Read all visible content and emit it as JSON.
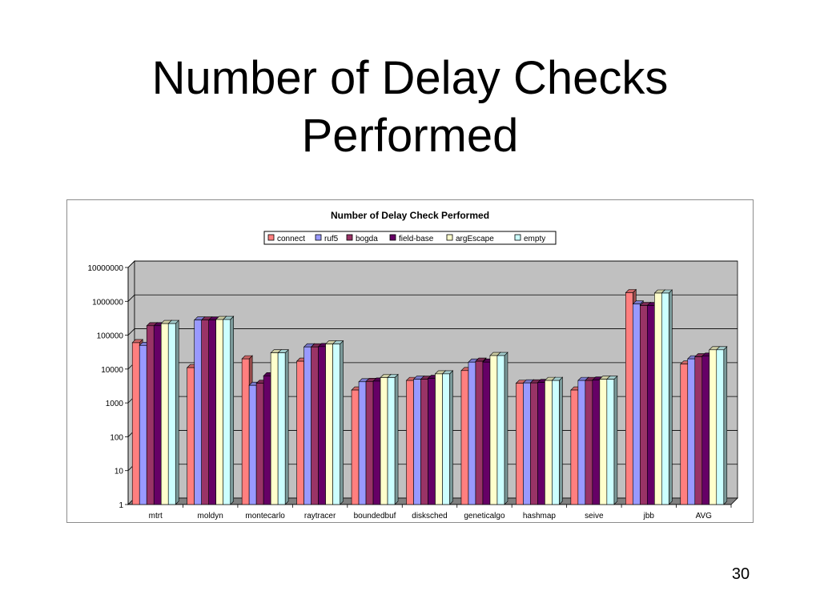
{
  "slide": {
    "title_line1": "Number of Delay Checks",
    "title_line2": "Performed",
    "page_number": "30"
  },
  "chart_data": {
    "type": "bar",
    "title": "Number of Delay Check Performed",
    "yscale": "log",
    "ylim": [
      1,
      10000000
    ],
    "yticks": [
      "1",
      "10",
      "100",
      "1000",
      "10000",
      "100000",
      "1000000",
      "10000000"
    ],
    "grid": true,
    "legend_position": "top",
    "categories": [
      "mtrt",
      "moldyn",
      "montecarlo",
      "raytracer",
      "boundedbuf",
      "disksched",
      "geneticalgo",
      "hashmap",
      "seive",
      "jbb",
      "AVG"
    ],
    "series": [
      {
        "name": "connect",
        "color": "#ff7f7f",
        "values": [
          60000,
          11000,
          20000,
          17000,
          2400,
          4600,
          9000,
          3800,
          2400,
          1800000,
          14000
        ]
      },
      {
        "name": "ruf5",
        "color": "#9999ff",
        "values": [
          50000,
          280000,
          3300,
          45000,
          4200,
          5000,
          16000,
          3900,
          4600,
          830000,
          20000
        ]
      },
      {
        "name": "bogda",
        "color": "#993366",
        "values": [
          190000,
          280000,
          3800,
          45000,
          4300,
          5000,
          17000,
          3900,
          4600,
          750000,
          23000
        ]
      },
      {
        "name": "field-base",
        "color": "#660066",
        "values": [
          190000,
          280000,
          6300,
          46000,
          4400,
          5300,
          16000,
          4000,
          4700,
          750000,
          24000
        ]
      },
      {
        "name": "argEscape",
        "color": "#ffffcc",
        "values": [
          220000,
          290000,
          30000,
          55000,
          5600,
          7200,
          25000,
          4600,
          5000,
          1750000,
          37000
        ]
      },
      {
        "name": "empty",
        "color": "#ccffff",
        "values": [
          220000,
          290000,
          30000,
          55000,
          5600,
          7200,
          25000,
          4600,
          5000,
          1750000,
          37000
        ]
      }
    ],
    "colors": {
      "plot_background": "#c0c0c0",
      "floor": "#808080",
      "bar_outline": "#000000",
      "gridline": "#000000"
    }
  }
}
